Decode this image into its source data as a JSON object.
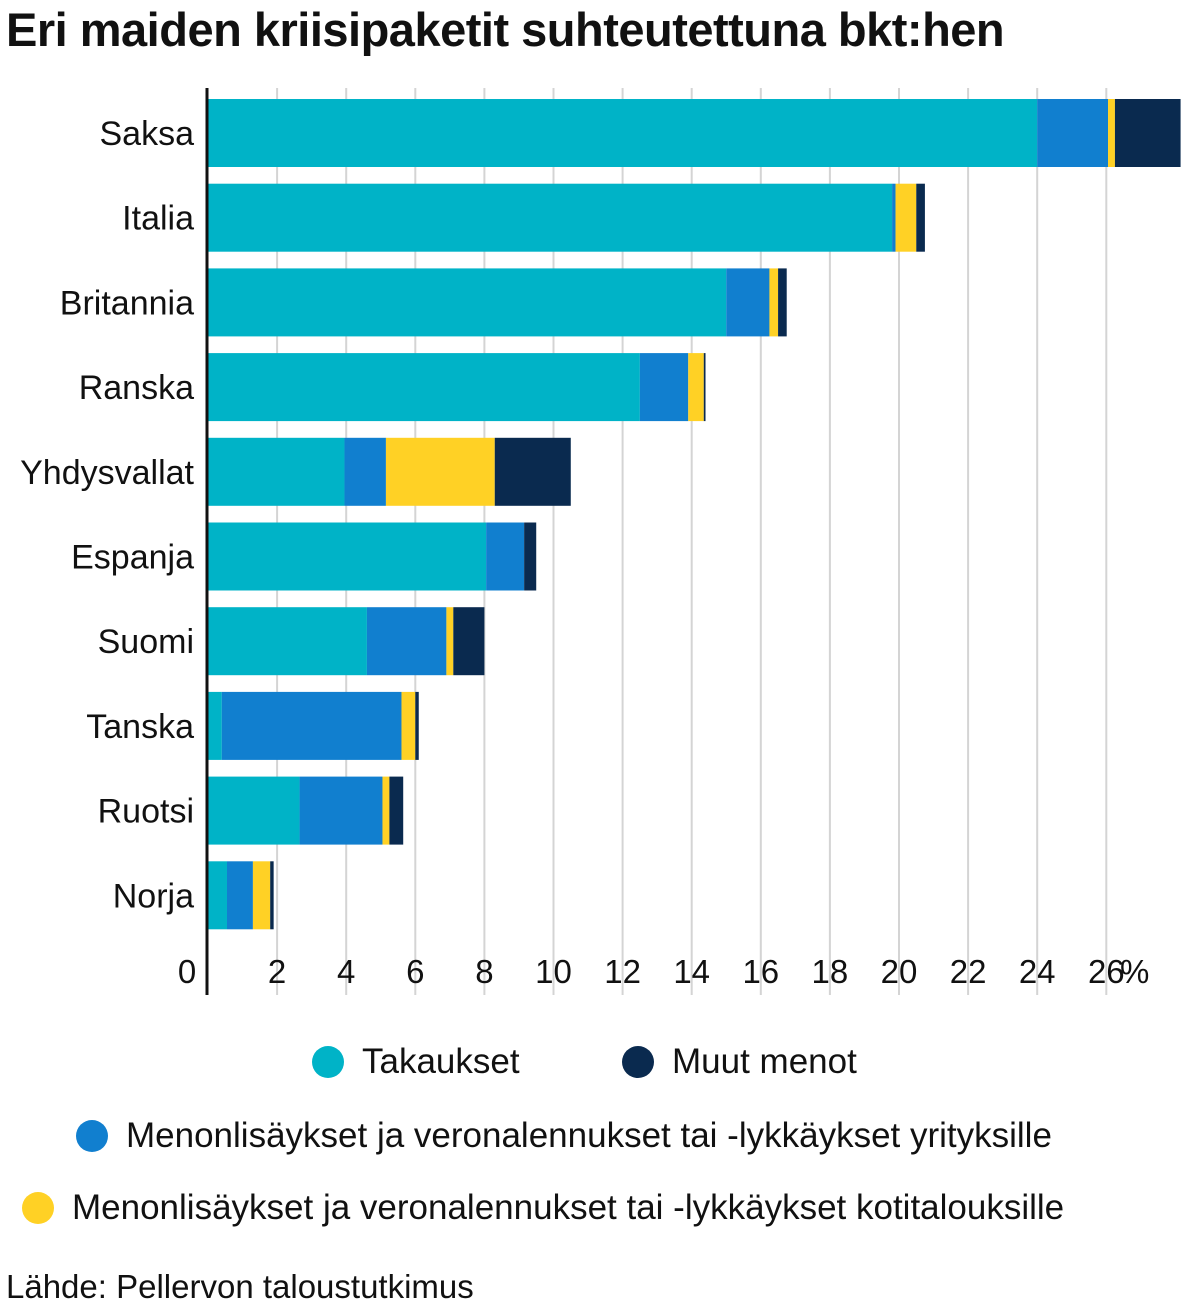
{
  "chart_data": {
    "type": "bar",
    "orientation": "horizontal",
    "stacked": true,
    "title": "Eri maiden kriisipaketit suhteutettuna bkt:hen",
    "categories": [
      "Saksa",
      "Italia",
      "Britannia",
      "Ranska",
      "Yhdysvallat",
      "Espanja",
      "Suomi",
      "Tanska",
      "Ruotsi",
      "Norja"
    ],
    "series": [
      {
        "name": "Takaukset",
        "color": "#00b3c7",
        "values": [
          24.0,
          19.8,
          15.0,
          12.5,
          3.95,
          8.05,
          4.6,
          0.4,
          2.65,
          0.55
        ]
      },
      {
        "name": "Menonlisäykset ja veronalennukset tai -lykkäykset yrityksille",
        "color": "#117fcf",
        "values": [
          2.05,
          0.1,
          1.25,
          1.4,
          1.2,
          1.1,
          2.3,
          5.2,
          2.4,
          0.75
        ]
      },
      {
        "name": "Menonlisäykset ja veronalennukset tai -lykkäykset kotitalouksille",
        "color": "#ffd125",
        "values": [
          0.2,
          0.6,
          0.25,
          0.45,
          3.15,
          0.0,
          0.2,
          0.4,
          0.2,
          0.5
        ]
      },
      {
        "name": "Muut menot",
        "color": "#0a2a4f",
        "values": [
          1.9,
          0.25,
          0.25,
          0.05,
          2.2,
          0.35,
          0.9,
          0.1,
          0.4,
          0.1
        ]
      }
    ],
    "xlim": [
      0,
      28.2
    ],
    "x_ticks": [
      "0",
      "2",
      "4",
      "6",
      "8",
      "10",
      "12",
      "14",
      "16",
      "18",
      "20",
      "22",
      "24",
      "26"
    ],
    "x_unit": "%",
    "grid": true,
    "legend_position": "bottom"
  },
  "legend": {
    "takaukset": "Takaukset",
    "muut": "Muut menot",
    "yritykset": "Menonlisäykset ja veronalennukset tai -lykkäykset yrityksille",
    "kotitaloudet": "Menonlisäykset ja veronalennukset tai -lykkäykset kotitalouksille"
  },
  "colors": {
    "takaukset": "#00b3c7",
    "yritykset": "#117fcf",
    "kotitaloudet": "#ffd125",
    "muut": "#0a2a4f",
    "grid": "#d4d4d4",
    "axis": "#111111"
  },
  "source": "Lähde: Pellervon taloustutkimus"
}
